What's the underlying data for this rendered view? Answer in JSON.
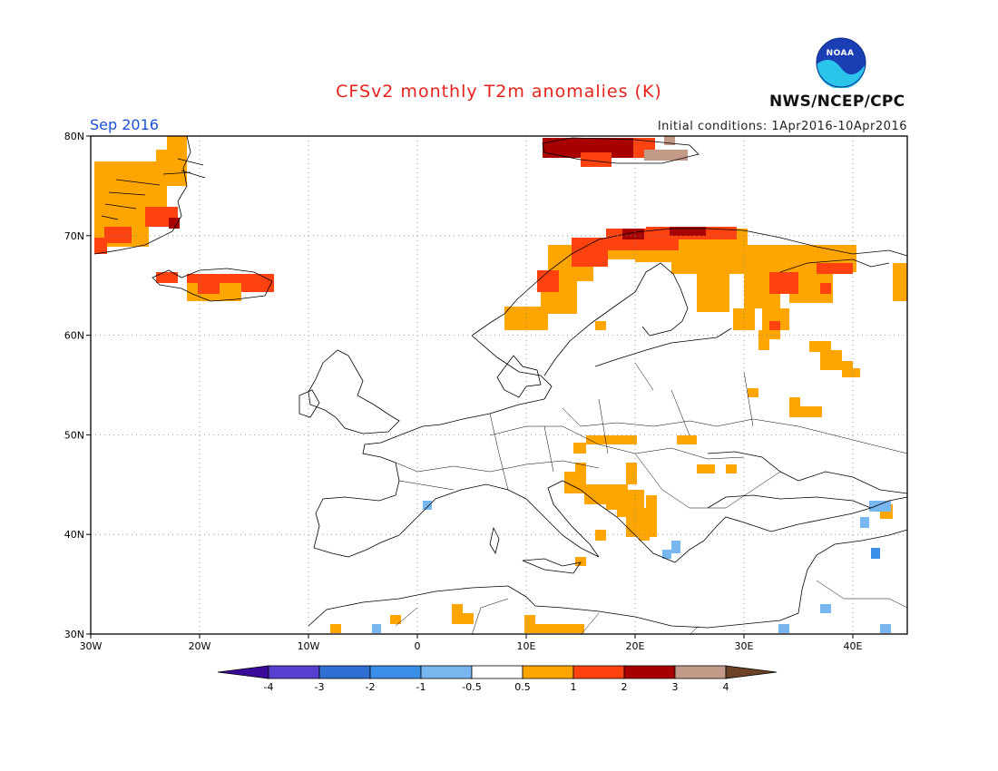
{
  "header": {
    "title": "CFSv2 monthly T2m anomalies (K)",
    "month": "Sep 2016",
    "initial_conditions": "Initial conditions: 1Apr2016-10Apr2016",
    "agency": "NWS/NCEP/CPC",
    "logo_text": "NOAA"
  },
  "map": {
    "lat_labels": [
      "80N",
      "70N",
      "60N",
      "50N",
      "40N",
      "30N"
    ],
    "lon_labels": [
      "30W",
      "20W",
      "10W",
      "0",
      "10E",
      "20E",
      "30E",
      "40E"
    ]
  },
  "legend": {
    "tick_labels": [
      "-4",
      "-3",
      "-2",
      "-1",
      "-0.5",
      "0.5",
      "1",
      "2",
      "3",
      "4"
    ],
    "colors": [
      "#3a0a9a",
      "#5540d0",
      "#2f6fd4",
      "#3b8ee8",
      "#78b6f0",
      "#ffffff",
      "#ffa500",
      "#ff4210",
      "#a80000",
      "#c39a88",
      "#6b4226"
    ]
  }
}
